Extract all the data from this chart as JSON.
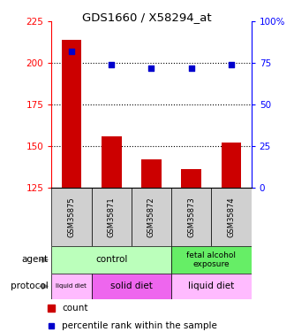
{
  "title": "GDS1660 / X58294_at",
  "samples": [
    "GSM35875",
    "GSM35871",
    "GSM35872",
    "GSM35873",
    "GSM35874"
  ],
  "bar_values": [
    214,
    156,
    142,
    136,
    152
  ],
  "bar_bottom": 125,
  "bar_color": "#cc0000",
  "percentile_values": [
    207,
    199,
    197,
    197,
    199
  ],
  "percentile_color": "#0000cc",
  "ylim_left": [
    125,
    225
  ],
  "ylim_right": [
    0,
    100
  ],
  "yticks_left": [
    125,
    150,
    175,
    200,
    225
  ],
  "yticks_right": [
    0,
    25,
    50,
    75,
    100
  ],
  "grid_values": [
    150,
    175,
    200
  ],
  "sample_box_color": "#d0d0d0",
  "control_color": "#bbffbb",
  "fetal_color": "#66ee66",
  "liquid_color": "#ffbbff",
  "solid_color": "#ee66ee",
  "legend_count_color": "#cc0000",
  "legend_percentile_color": "#0000cc"
}
